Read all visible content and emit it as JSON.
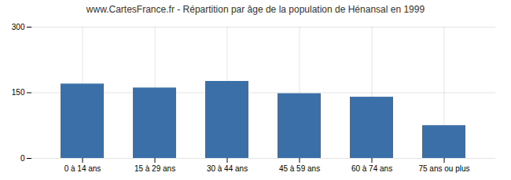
{
  "chart_data": {
    "type": "bar",
    "title": "www.CartesFrance.fr - Répartition par âge de la population de Hénansal en 1999",
    "categories": [
      "0 à 14 ans",
      "15 à 29 ans",
      "30 à 44 ans",
      "45 à 59 ans",
      "60 à 74 ans",
      "75 ans ou plus"
    ],
    "values": [
      170,
      161,
      176,
      148,
      140,
      75
    ],
    "color": "#3a6fa8",
    "ylim": [
      0,
      300
    ],
    "yticks": [
      0,
      150,
      300
    ],
    "grid": true
  }
}
